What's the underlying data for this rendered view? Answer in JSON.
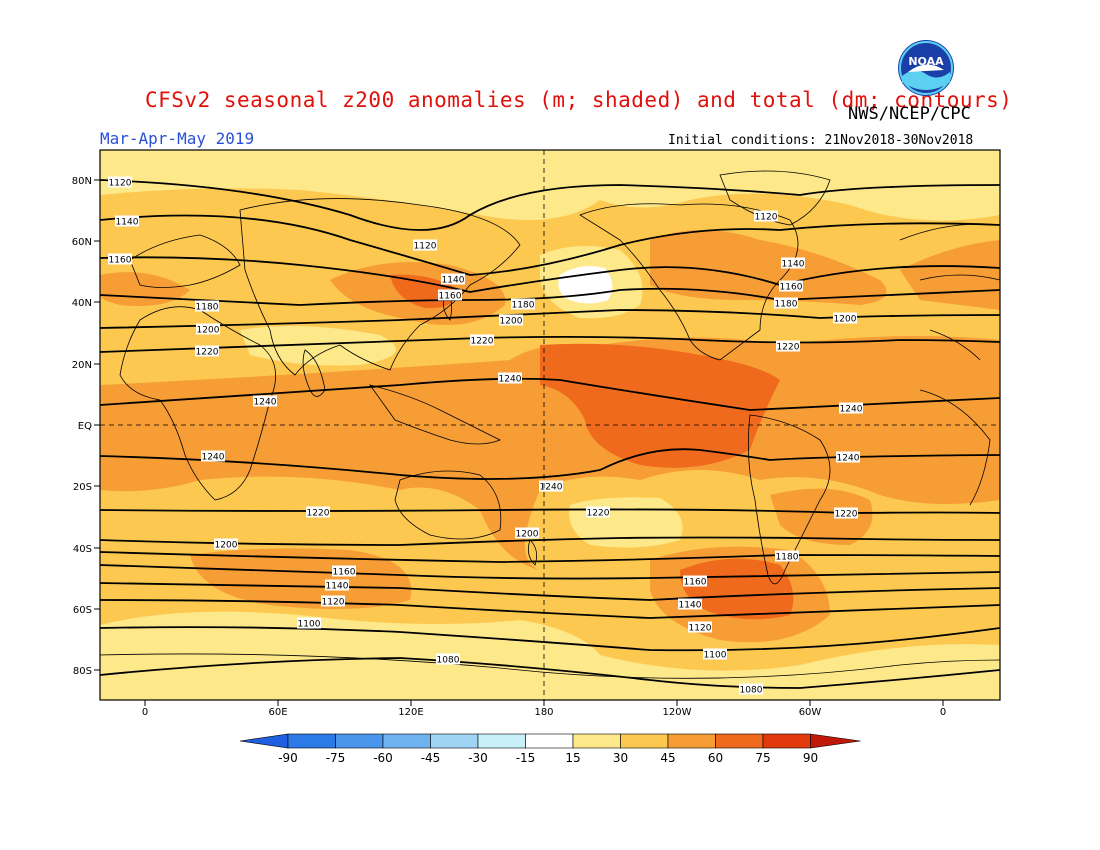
{
  "header": {
    "title": "CFSv2 seasonal z200 anomalies (m; shaded) and total (dm; contours)",
    "organization": "NWS/NCEP/CPC",
    "period": "Mar-Apr-May 2019",
    "initial_conditions": "Initial conditions: 21Nov2018-30Nov2018",
    "logo_text": "NOAA"
  },
  "map": {
    "lat_ticks": [
      "80N",
      "60N",
      "40N",
      "20N",
      "EQ",
      "20S",
      "40S",
      "60S",
      "80S"
    ],
    "lon_ticks": [
      "0",
      "60E",
      "120E",
      "180",
      "120W",
      "60W",
      "0"
    ],
    "contour_labels": [
      {
        "text": "1120",
        "id": "c1120a"
      },
      {
        "text": "1140",
        "id": "c1140a"
      },
      {
        "text": "1160",
        "id": "c1160a"
      },
      {
        "text": "1180",
        "id": "c1180a"
      },
      {
        "text": "1200",
        "id": "c1200a"
      },
      {
        "text": "1220",
        "id": "c1220a"
      },
      {
        "text": "1240",
        "id": "c1240a"
      },
      {
        "text": "1240",
        "id": "c1240b"
      },
      {
        "text": "1220",
        "id": "c1220b"
      },
      {
        "text": "1200",
        "id": "c1200b"
      },
      {
        "text": "1160",
        "id": "c1160b"
      },
      {
        "text": "1140",
        "id": "c1140b"
      },
      {
        "text": "1120",
        "id": "c1120b"
      },
      {
        "text": "1100",
        "id": "c1100a"
      },
      {
        "text": "1080",
        "id": "c1080a"
      },
      {
        "text": "1120",
        "id": "c1120c"
      },
      {
        "text": "1140",
        "id": "c1140c"
      },
      {
        "text": "1160",
        "id": "c1160c"
      },
      {
        "text": "1180",
        "id": "c1180c"
      },
      {
        "text": "1200",
        "id": "c1200c"
      },
      {
        "text": "1220",
        "id": "c1220c"
      },
      {
        "text": "1240",
        "id": "c1240c"
      },
      {
        "text": "1240",
        "id": "c1240d"
      },
      {
        "text": "1220",
        "id": "c1220d"
      },
      {
        "text": "1200",
        "id": "c1200d"
      },
      {
        "text": "1180",
        "id": "c1180d"
      },
      {
        "text": "1160",
        "id": "c1160d"
      },
      {
        "text": "1140",
        "id": "c1140d"
      },
      {
        "text": "1120",
        "id": "c1120d"
      },
      {
        "text": "1100",
        "id": "c1100b"
      },
      {
        "text": "1080",
        "id": "c1080b"
      },
      {
        "text": "1120",
        "id": "c1120e"
      },
      {
        "text": "1140",
        "id": "c1140e"
      },
      {
        "text": "1160",
        "id": "c1160e"
      },
      {
        "text": "1180",
        "id": "c1180e"
      },
      {
        "text": "1200",
        "id": "c1200e"
      },
      {
        "text": "1220",
        "id": "c1220e"
      },
      {
        "text": "1240",
        "id": "c1240e"
      },
      {
        "text": "1240",
        "id": "c1240f"
      },
      {
        "text": "1220",
        "id": "c1220f"
      },
      {
        "text": "1200",
        "id": "c1200f"
      },
      {
        "text": "1240",
        "id": "c1240g"
      }
    ]
  },
  "colorbar": {
    "labels": [
      "-90",
      "-75",
      "-60",
      "-45",
      "-30",
      "-15",
      "15",
      "30",
      "45",
      "60",
      "75",
      "90"
    ],
    "colors": [
      "#1f5fe0",
      "#2c7ae8",
      "#4a96ec",
      "#6fb2f0",
      "#9fd4f4",
      "#c8f0f8",
      "#ffffff",
      "#fde88a",
      "#fdc850",
      "#f79d35",
      "#f06a1e",
      "#e23a0c",
      "#c01808"
    ]
  },
  "shading_colors": {
    "light": "#fde88a",
    "medium": "#fdc850",
    "orange": "#f79d35",
    "dark_orange": "#f06a1e",
    "white": "#ffffff"
  }
}
